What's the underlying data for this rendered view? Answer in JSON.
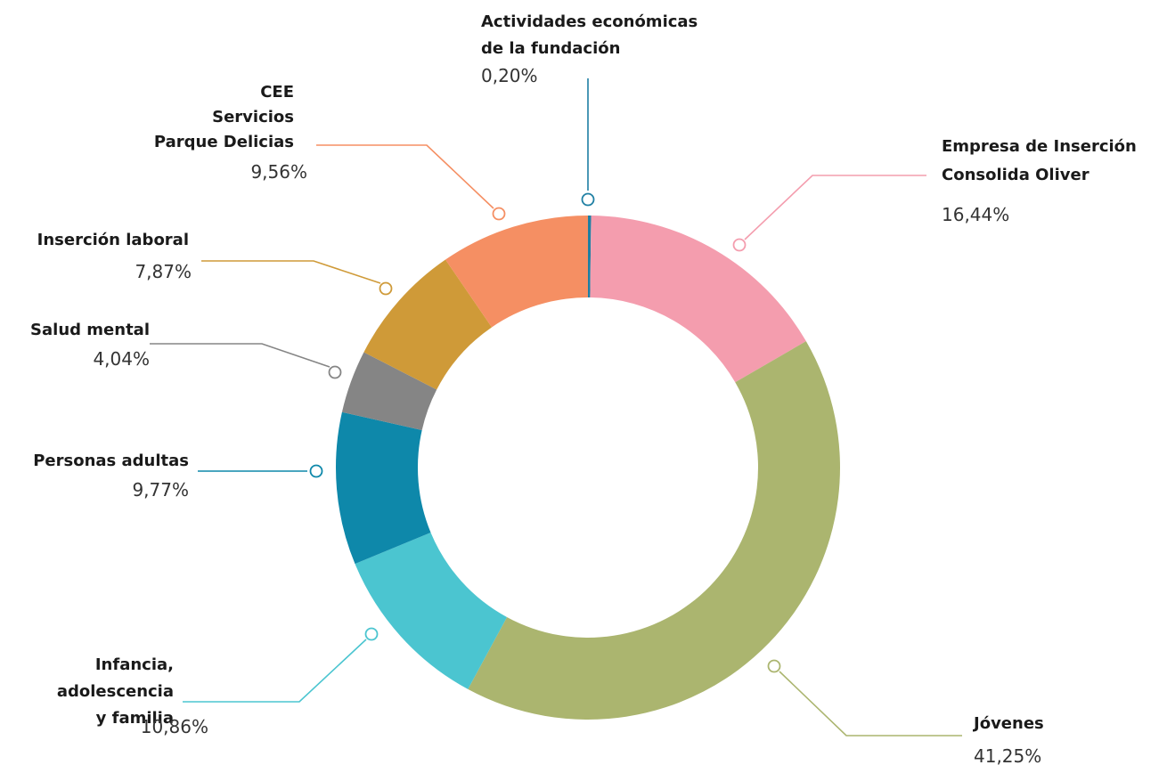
{
  "chart_data": {
    "type": "pie",
    "variant": "donut",
    "title": "",
    "start": "top, clockwise",
    "slices": [
      {
        "lines": [
          "Actividades económicas",
          "de la fundación"
        ],
        "value_label": "0,20%",
        "value": 0.2,
        "color": "#1e7fa3"
      },
      {
        "lines": [
          "Empresa de Inserción",
          "Consolida Oliver"
        ],
        "value_label": "16,44%",
        "value": 16.44,
        "color": "#f49dae"
      },
      {
        "lines": [
          "Jóvenes"
        ],
        "value_label": "41,25%",
        "value": 41.25,
        "color": "#abb56f"
      },
      {
        "lines": [
          "Infancia,",
          "adolescencia",
          "y familia"
        ],
        "value_label": "10,86%",
        "value": 10.86,
        "color": "#4bc5d0"
      },
      {
        "lines": [
          "Personas adultas"
        ],
        "value_label": "9,77%",
        "value": 9.77,
        "color": "#0e88aa"
      },
      {
        "lines": [
          "Salud mental"
        ],
        "value_label": "4,04%",
        "value": 4.04,
        "color": "#858585"
      },
      {
        "lines": [
          "Inserción laboral"
        ],
        "value_label": "7,87%",
        "value": 7.87,
        "color": "#cf9a38"
      },
      {
        "lines": [
          "CEE",
          "Servicios",
          "Parque Delicias"
        ],
        "value_label": "9,56%",
        "value": 9.56,
        "color": "#f58f63"
      }
    ]
  }
}
